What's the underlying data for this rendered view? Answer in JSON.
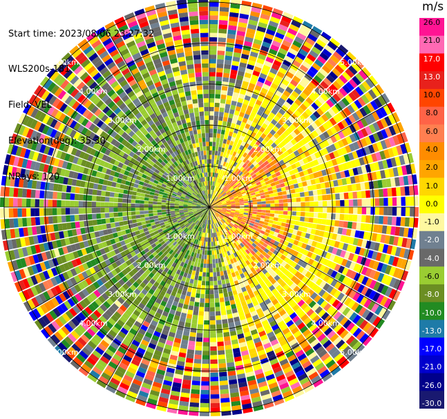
{
  "header": {
    "start_time": "Start time: 2023/08/06 23:27:32",
    "site": "WLS200s-181",
    "field": "Field: VEL",
    "elevation": "Elevation(deg): 35.30",
    "nrays": "NRays: 120"
  },
  "chart_data": {
    "type": "heatmap",
    "subtype": "radar-ppi",
    "nrays": 120,
    "field": "VEL",
    "units": "m/s",
    "range_rings_km": [
      1.0,
      2.0,
      3.0,
      4.0,
      5.0
    ],
    "range_ring_labels": [
      "1.00km",
      "2.00km",
      "3.00km",
      "4.00km",
      "5.00km"
    ],
    "max_range_km": 5.1,
    "grid": true,
    "colorbar": {
      "unit_label": "m/s",
      "tick_labels": [
        "26.0",
        "21.0",
        "17.0",
        "13.0",
        "10.0",
        "8.0",
        "6.0",
        "4.0",
        "2.0",
        "1.0",
        "0.0",
        "-1.0",
        "-2.0",
        "-4.0",
        "-6.0",
        "-8.0",
        "-10.0",
        "-13.0",
        "-17.0",
        "-21.0",
        "-26.0",
        "-30.0"
      ],
      "colors": [
        "#ff1493",
        "#ff69b4",
        "#ff0000",
        "#e8211c",
        "#ff4500",
        "#ff6347",
        "#ff7f50",
        "#ff8c00",
        "#ffa500",
        "#ffd700",
        "#ffff00",
        "#fff8a0",
        "#708090",
        "#696969",
        "#9acd32",
        "#6b8e23",
        "#228b22",
        "#1e7ba8",
        "#0000ff",
        "#0000cd",
        "#00008b",
        "#191970"
      ]
    },
    "pattern_description_values": {
      "positive_sector_center_deg": 90,
      "negative_sector_center_deg": 270
    }
  }
}
